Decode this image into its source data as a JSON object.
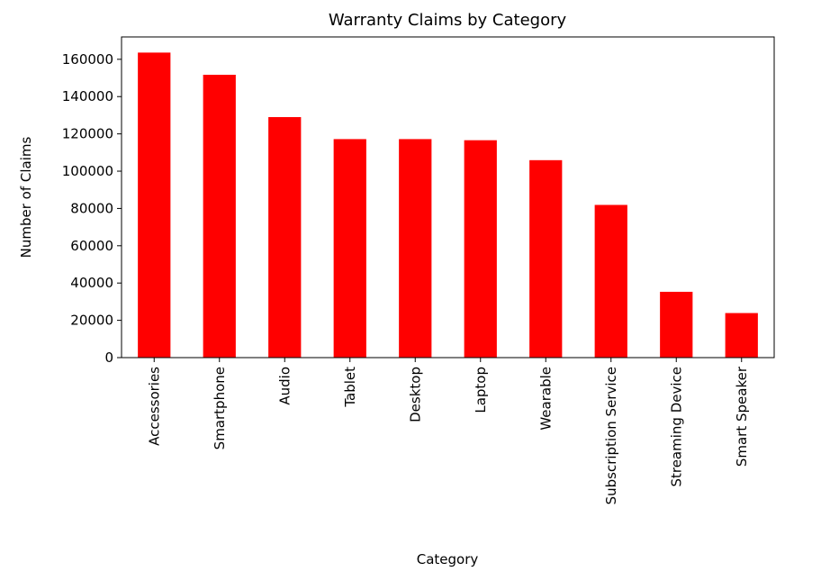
{
  "chart_data": {
    "type": "bar",
    "title": "Warranty Claims by Category",
    "xlabel": "Category",
    "ylabel": "Number of Claims",
    "categories": [
      "Accessories",
      "Smartphone",
      "Audio",
      "Tablet",
      "Desktop",
      "Laptop",
      "Wearable",
      "Subscription Service",
      "Streaming Device",
      "Smart Speaker"
    ],
    "values": [
      163600,
      151700,
      129000,
      117200,
      117200,
      116600,
      105900,
      81900,
      35300,
      23900
    ],
    "ylim": [
      0,
      172000
    ],
    "yticks": [
      0,
      20000,
      40000,
      60000,
      80000,
      100000,
      120000,
      140000,
      160000
    ],
    "bar_color": "#ff0000",
    "grid": false,
    "legend": "none"
  }
}
